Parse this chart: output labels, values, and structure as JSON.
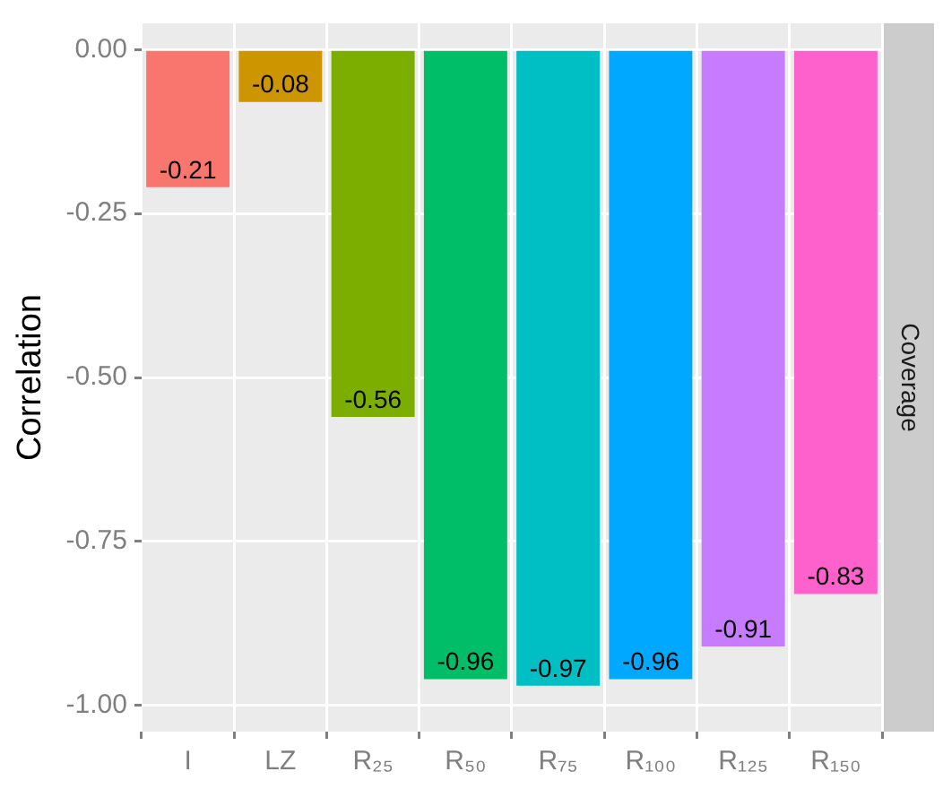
{
  "chart_data": {
    "type": "bar",
    "ylabel": "Correlation",
    "categories": [
      "I",
      "LZ",
      "R₂₅",
      "R₅₀",
      "R₇₅",
      "R₁₀₀",
      "R₁₂₅",
      "R₁₅₀"
    ],
    "values": [
      -0.21,
      -0.08,
      -0.56,
      -0.96,
      -0.97,
      -0.96,
      -0.91,
      -0.83
    ],
    "colors": [
      "#f8766d",
      "#cd9600",
      "#7cae00",
      "#00be67",
      "#00bfc4",
      "#00a9ff",
      "#c77cff",
      "#ff61cc"
    ],
    "ylim": [
      -1.04,
      0.04
    ],
    "yticks": [
      {
        "value": -1,
        "label": "-1.00"
      },
      {
        "value": -0.75,
        "label": "-0.75"
      },
      {
        "value": -0.5,
        "label": "-0.50"
      },
      {
        "value": -0.25,
        "label": "-0.25"
      },
      {
        "value": 0,
        "label": "0.00"
      }
    ],
    "grid": true,
    "legend": false,
    "data_labels": true,
    "annotations": [
      "Coverage"
    ]
  }
}
